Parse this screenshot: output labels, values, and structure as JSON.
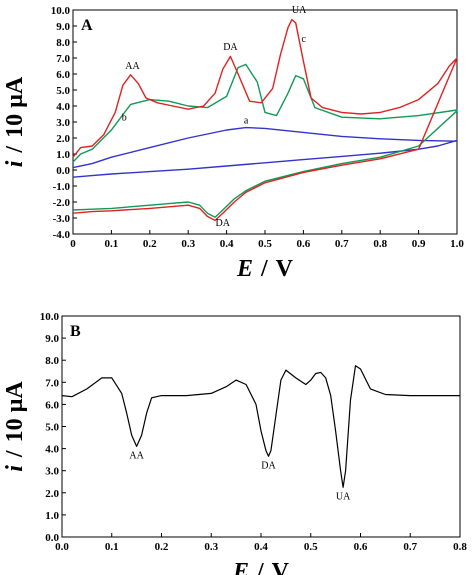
{
  "chart_data": [
    {
      "panel_label": "A",
      "type": "line",
      "xlabel_main": "E",
      "xlabel_sep": "/",
      "xlabel_unit": "V",
      "ylabel_main": "i",
      "ylabel_sep": "/",
      "ylabel_unit": "10 µA",
      "xlim": [
        0,
        1.0
      ],
      "ylim": [
        -4.0,
        10.0
      ],
      "xticks": [
        "0",
        "0.1",
        "0.2",
        "0.3",
        "0.4",
        "0.5",
        "0.6",
        "0.7",
        "0.8",
        "0.9",
        "1.0"
      ],
      "yticks": [
        "-4.0",
        "-3.0",
        "-2.0",
        "-1.0",
        "0.0",
        "1.0",
        "2.0",
        "3.0",
        "4.0",
        "5.0",
        "6.0",
        "7.0",
        "8.0",
        "9.0",
        "10.0"
      ],
      "colors": {
        "a": "#3333cc",
        "b": "#119955",
        "c": "#e02222"
      },
      "series": [
        {
          "name": "a",
          "anodic": {
            "x": [
              0.0,
              0.05,
              0.1,
              0.2,
              0.3,
              0.4,
              0.45,
              0.5,
              0.6,
              0.7,
              0.8,
              0.9,
              1.0
            ],
            "y": [
              0.15,
              0.4,
              0.8,
              1.4,
              2.0,
              2.5,
              2.65,
              2.6,
              2.35,
              2.1,
              1.95,
              1.85,
              1.8
            ]
          },
          "cathodic": {
            "x": [
              1.0,
              0.95,
              0.9,
              0.8,
              0.7,
              0.6,
              0.5,
              0.4,
              0.3,
              0.2,
              0.1,
              0.05,
              0.0
            ],
            "y": [
              1.85,
              1.5,
              1.3,
              1.05,
              0.85,
              0.65,
              0.45,
              0.25,
              0.05,
              -0.1,
              -0.25,
              -0.35,
              -0.45
            ]
          }
        },
        {
          "name": "b",
          "anodic": {
            "x": [
              0.0,
              0.02,
              0.05,
              0.1,
              0.15,
              0.2,
              0.25,
              0.3,
              0.35,
              0.4,
              0.43,
              0.45,
              0.48,
              0.5,
              0.53,
              0.56,
              0.58,
              0.6,
              0.63,
              0.7,
              0.8,
              0.9,
              1.0
            ],
            "y": [
              0.5,
              1.0,
              1.3,
              2.5,
              4.1,
              4.4,
              4.3,
              4.0,
              3.9,
              4.6,
              6.4,
              6.6,
              5.5,
              3.6,
              3.4,
              4.8,
              5.9,
              5.7,
              3.9,
              3.3,
              3.2,
              3.4,
              3.75
            ]
          },
          "cathodic": {
            "x": [
              1.0,
              0.9,
              0.8,
              0.7,
              0.6,
              0.5,
              0.45,
              0.42,
              0.39,
              0.37,
              0.35,
              0.33,
              0.3,
              0.25,
              0.2,
              0.1,
              0.05,
              0.0
            ],
            "y": [
              3.7,
              1.5,
              0.8,
              0.4,
              -0.1,
              -0.7,
              -1.3,
              -1.8,
              -2.5,
              -2.95,
              -2.7,
              -2.2,
              -2.0,
              -2.1,
              -2.2,
              -2.4,
              -2.45,
              -2.5
            ]
          }
        },
        {
          "name": "c",
          "anodic": {
            "x": [
              0.0,
              0.02,
              0.05,
              0.08,
              0.11,
              0.13,
              0.15,
              0.17,
              0.19,
              0.22,
              0.26,
              0.3,
              0.34,
              0.37,
              0.39,
              0.41,
              0.43,
              0.46,
              0.49,
              0.52,
              0.54,
              0.56,
              0.57,
              0.58,
              0.6,
              0.62,
              0.65,
              0.7,
              0.75,
              0.8,
              0.85,
              0.9,
              0.95,
              0.98,
              1.0
            ],
            "y": [
              0.8,
              1.4,
              1.5,
              2.2,
              3.6,
              5.3,
              5.95,
              5.4,
              4.5,
              4.2,
              4.0,
              3.8,
              4.0,
              4.8,
              6.3,
              7.1,
              6.0,
              4.3,
              4.2,
              5.1,
              7.2,
              8.9,
              9.4,
              9.2,
              6.8,
              4.5,
              3.9,
              3.6,
              3.5,
              3.6,
              3.9,
              4.4,
              5.4,
              6.5,
              7.0
            ]
          },
          "cathodic": {
            "x": [
              1.0,
              0.9,
              0.8,
              0.7,
              0.6,
              0.5,
              0.45,
              0.42,
              0.39,
              0.37,
              0.35,
              0.33,
              0.3,
              0.25,
              0.2,
              0.1,
              0.05,
              0.0
            ],
            "y": [
              7.0,
              1.3,
              0.7,
              0.3,
              -0.15,
              -0.8,
              -1.4,
              -2.0,
              -2.7,
              -3.15,
              -2.9,
              -2.4,
              -2.2,
              -2.3,
              -2.4,
              -2.55,
              -2.6,
              -2.7
            ]
          }
        }
      ],
      "annotations": [
        "AA",
        "DA",
        "UA",
        "DA",
        "a",
        "b",
        "c"
      ]
    },
    {
      "panel_label": "B",
      "type": "line",
      "xlabel_main": "E",
      "xlabel_sep": "/",
      "xlabel_unit": "V",
      "ylabel_main": "i",
      "ylabel_sep": "/",
      "ylabel_unit": "10 µA",
      "xlim": [
        0.0,
        0.8
      ],
      "ylim": [
        0.0,
        10.0
      ],
      "xticks": [
        "0.0",
        "0.1",
        "0.2",
        "0.3",
        "0.4",
        "0.5",
        "0.6",
        "0.7",
        "0.8"
      ],
      "yticks": [
        "0.0",
        "1.0",
        "2.0",
        "3.0",
        "4.0",
        "5.0",
        "6.0",
        "7.0",
        "8.0",
        "9.0",
        "10.0"
      ],
      "color": "#000000",
      "series": [
        {
          "x": [
            0.0,
            0.02,
            0.05,
            0.08,
            0.1,
            0.12,
            0.13,
            0.14,
            0.15,
            0.16,
            0.17,
            0.18,
            0.2,
            0.25,
            0.3,
            0.33,
            0.35,
            0.37,
            0.39,
            0.4,
            0.41,
            0.415,
            0.42,
            0.43,
            0.44,
            0.45,
            0.47,
            0.49,
            0.5,
            0.51,
            0.52,
            0.53,
            0.54,
            0.55,
            0.56,
            0.565,
            0.57,
            0.58,
            0.59,
            0.6,
            0.62,
            0.65,
            0.7,
            0.75,
            0.8
          ],
          "y": [
            6.4,
            6.35,
            6.7,
            7.2,
            7.2,
            6.5,
            5.6,
            4.6,
            4.1,
            4.6,
            5.6,
            6.3,
            6.4,
            6.4,
            6.5,
            6.8,
            7.1,
            6.9,
            6.0,
            4.8,
            3.9,
            3.65,
            3.9,
            5.5,
            7.1,
            7.55,
            7.2,
            6.9,
            7.1,
            7.4,
            7.45,
            7.2,
            6.4,
            4.8,
            3.0,
            2.25,
            3.0,
            6.2,
            7.75,
            7.6,
            6.7,
            6.45,
            6.4,
            6.4,
            6.4
          ]
        }
      ],
      "annotations": [
        "AA",
        "DA",
        "UA"
      ]
    }
  ]
}
